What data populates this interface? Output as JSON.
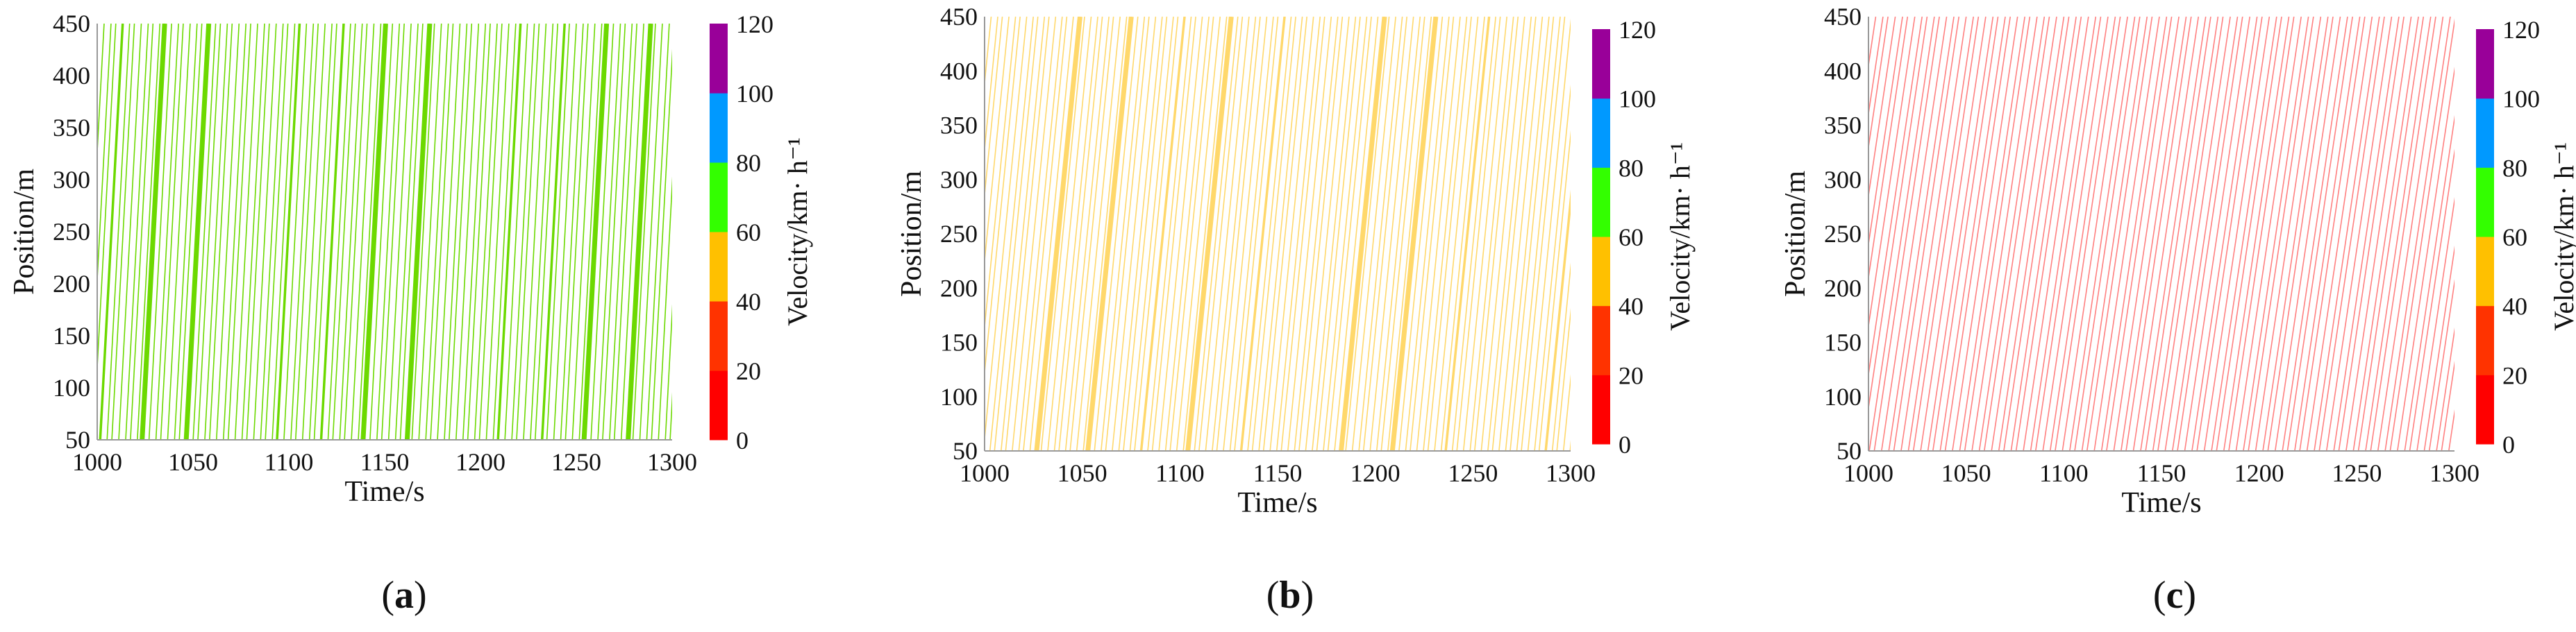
{
  "chart_data": [
    {
      "type": "scatter",
      "panel_label": "a",
      "xlabel": "Time/s",
      "ylabel": "Position/m",
      "xlim": [
        1000,
        1300
      ],
      "ylim": [
        50,
        450
      ],
      "xticks": [
        "1000",
        "1050",
        "1100",
        "1150",
        "1200",
        "1250",
        "1300"
      ],
      "yticks": [
        "50",
        "100",
        "150",
        "200",
        "250",
        "300",
        "350",
        "400",
        "450"
      ],
      "trajectory_color": "#6cd900",
      "trajectory_spacing_s": 3.2,
      "trajectory_slope_m_per_s": 34,
      "dense_band_period_s": 23,
      "colorbar": {
        "label": "Velocity/km· h⁻¹",
        "ticks": [
          "0",
          "20",
          "40",
          "60",
          "80",
          "100",
          "120"
        ],
        "colors": [
          "#ff0000",
          "#ff3300",
          "#ffc000",
          "#33ff00",
          "#0099ff",
          "#990099"
        ]
      }
    },
    {
      "type": "scatter",
      "panel_label": "b",
      "xlabel": "Time/s",
      "ylabel": "Position/m",
      "xlim": [
        1000,
        1300
      ],
      "ylim": [
        50,
        450
      ],
      "xticks": [
        "1000",
        "1050",
        "1100",
        "1150",
        "1200",
        "1250",
        "1300"
      ],
      "yticks": [
        "50",
        "100",
        "150",
        "200",
        "250",
        "300",
        "350",
        "400",
        "450"
      ],
      "trajectory_color": "#ffd86b",
      "trajectory_spacing_s": 3.0,
      "trajectory_slope_m_per_s": 18,
      "dense_band_period_s": 26,
      "colorbar": {
        "label": "Velocity/km· h⁻¹",
        "ticks": [
          "0",
          "20",
          "40",
          "60",
          "80",
          "100",
          "120"
        ],
        "colors": [
          "#ff0000",
          "#ff3300",
          "#ffc000",
          "#33ff00",
          "#0099ff",
          "#990099"
        ]
      }
    },
    {
      "type": "scatter",
      "panel_label": "c",
      "xlabel": "Time/s",
      "ylabel": "Position/m",
      "xlim": [
        1000,
        1300
      ],
      "ylim": [
        50,
        450
      ],
      "xticks": [
        "1000",
        "1050",
        "1100",
        "1150",
        "1200",
        "1250",
        "1300"
      ],
      "yticks": [
        "50",
        "100",
        "150",
        "200",
        "250",
        "300",
        "350",
        "400",
        "450"
      ],
      "trajectory_color": "#ff8080",
      "trajectory_spacing_s": 3.3,
      "trajectory_slope_m_per_s": 12,
      "dense_band_period_s": 0,
      "colorbar": {
        "label": "Velocity/km· h⁻¹",
        "ticks": [
          "0",
          "20",
          "40",
          "60",
          "80",
          "100",
          "120"
        ],
        "colors": [
          "#ff0000",
          "#ff3300",
          "#ffc000",
          "#33ff00",
          "#0099ff",
          "#990099"
        ]
      }
    }
  ]
}
